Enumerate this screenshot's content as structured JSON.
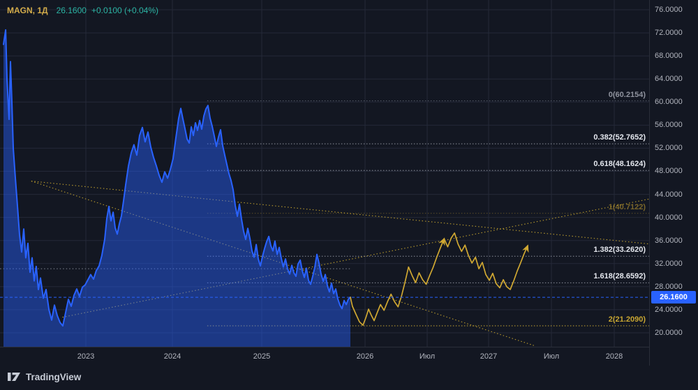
{
  "legend": {
    "symbol": "MAGN, 1Д",
    "price": "26.1600",
    "change": "+0.0100 (+0.04%)"
  },
  "colors": {
    "background": "#131722",
    "grid": "#242938",
    "axis_text": "#b2b5be",
    "axis_border": "#2a2e39",
    "series_blue": "#2962ff",
    "series_blue_fill": "rgba(41,98,255,0.45)",
    "drawing_yellow": "#d0a832",
    "trendline_yellow": "#b89a2e",
    "up_teal": "#2bb3a3",
    "symbol_gold": "#d2ab4a",
    "current_price_bg": "#2962ff"
  },
  "price_axis": {
    "ticks": [
      {
        "label": "76.0000",
        "value": 76
      },
      {
        "label": "72.0000",
        "value": 72
      },
      {
        "label": "68.0000",
        "value": 68
      },
      {
        "label": "64.0000",
        "value": 64
      },
      {
        "label": "60.0000",
        "value": 60
      },
      {
        "label": "56.0000",
        "value": 56
      },
      {
        "label": "52.0000",
        "value": 52
      },
      {
        "label": "48.0000",
        "value": 48
      },
      {
        "label": "44.0000",
        "value": 44
      },
      {
        "label": "40.0000",
        "value": 40
      },
      {
        "label": "36.0000",
        "value": 36
      },
      {
        "label": "32.0000",
        "value": 32
      },
      {
        "label": "28.0000",
        "value": 28
      },
      {
        "label": "24.0000",
        "value": 24
      },
      {
        "label": "20.0000",
        "value": 20
      }
    ],
    "current": {
      "text": "26.1600",
      "value": 26.16,
      "bg": "#2962ff"
    }
  },
  "time_axis": {
    "ticks": [
      {
        "label": "2023",
        "t": 2023
      },
      {
        "label": "2024",
        "t": 2024
      },
      {
        "label": "2025",
        "t": 2025
      },
      {
        "label": "2026",
        "t": 2026
      },
      {
        "label": "Июл",
        "t": 2026.5
      },
      {
        "label": "2027",
        "t": 2027
      },
      {
        "label": "Июл",
        "t": 2027.5
      },
      {
        "label": "2028",
        "t": 2028
      }
    ]
  },
  "footer": {
    "brand": "TradingView"
  },
  "chart_data": {
    "type": "line",
    "x_unit": "decimal-year",
    "xlim": [
      2022.01,
      2028.28
    ],
    "ylim": [
      17.6,
      77.7
    ],
    "grid": true,
    "series": [
      {
        "name": "MAGN close",
        "color": "#2962ff",
        "width": 2,
        "area": true,
        "area_color": "rgba(41,98,255,0.45)",
        "points": [
          [
            2022.048,
            70
          ],
          [
            2022.073,
            72.5
          ],
          [
            2022.089,
            64
          ],
          [
            2022.113,
            57
          ],
          [
            2022.129,
            67
          ],
          [
            2022.145,
            60
          ],
          [
            2022.161,
            52
          ],
          [
            2022.185,
            47
          ],
          [
            2022.21,
            42
          ],
          [
            2022.234,
            37
          ],
          [
            2022.258,
            34
          ],
          [
            2022.282,
            38
          ],
          [
            2022.306,
            33
          ],
          [
            2022.331,
            35.5
          ],
          [
            2022.355,
            30.5
          ],
          [
            2022.379,
            33
          ],
          [
            2022.403,
            29
          ],
          [
            2022.427,
            31.5
          ],
          [
            2022.452,
            27.5
          ],
          [
            2022.476,
            29.5
          ],
          [
            2022.508,
            26
          ],
          [
            2022.54,
            27.5
          ],
          [
            2022.573,
            24
          ],
          [
            2022.605,
            22.2
          ],
          [
            2022.637,
            24.8
          ],
          [
            2022.669,
            23
          ],
          [
            2022.702,
            21.8
          ],
          [
            2022.734,
            21.2
          ],
          [
            2022.766,
            23.5
          ],
          [
            2022.798,
            25.8
          ],
          [
            2022.831,
            24.6
          ],
          [
            2022.863,
            26.5
          ],
          [
            2022.895,
            27.6
          ],
          [
            2022.927,
            26.3
          ],
          [
            2022.96,
            27.9
          ],
          [
            2022.992,
            28.3
          ],
          [
            2023.024,
            29.2
          ],
          [
            2023.056,
            30.1
          ],
          [
            2023.089,
            29.3
          ],
          [
            2023.121,
            30.8
          ],
          [
            2023.153,
            31.6
          ],
          [
            2023.185,
            33.4
          ],
          [
            2023.218,
            36.2
          ],
          [
            2023.242,
            39.8
          ],
          [
            2023.266,
            41.9
          ],
          [
            2023.29,
            39.4
          ],
          [
            2023.315,
            40.9
          ],
          [
            2023.339,
            38.2
          ],
          [
            2023.363,
            37.1
          ],
          [
            2023.387,
            38.9
          ],
          [
            2023.411,
            40.3
          ],
          [
            2023.435,
            42.8
          ],
          [
            2023.46,
            45.6
          ],
          [
            2023.492,
            48.9
          ],
          [
            2023.524,
            51.2
          ],
          [
            2023.556,
            52.6
          ],
          [
            2023.589,
            50.8
          ],
          [
            2023.621,
            54.2
          ],
          [
            2023.653,
            55.6
          ],
          [
            2023.685,
            53.1
          ],
          [
            2023.718,
            54.8
          ],
          [
            2023.75,
            52.2
          ],
          [
            2023.782,
            50.4
          ],
          [
            2023.815,
            48.9
          ],
          [
            2023.847,
            47.3
          ],
          [
            2023.879,
            46.1
          ],
          [
            2023.911,
            47.9
          ],
          [
            2023.944,
            46.8
          ],
          [
            2023.976,
            48.3
          ],
          [
            2024.008,
            50.2
          ],
          [
            2024.039,
            53.8
          ],
          [
            2024.07,
            57.2
          ],
          [
            2024.094,
            58.9
          ],
          [
            2024.117,
            57.1
          ],
          [
            2024.141,
            55.4
          ],
          [
            2024.164,
            53.6
          ],
          [
            2024.188,
            52.9
          ],
          [
            2024.211,
            55.7
          ],
          [
            2024.234,
            54.2
          ],
          [
            2024.258,
            56.4
          ],
          [
            2024.281,
            55.1
          ],
          [
            2024.305,
            56.8
          ],
          [
            2024.328,
            55.3
          ],
          [
            2024.352,
            57.6
          ],
          [
            2024.375,
            58.8
          ],
          [
            2024.398,
            59.4
          ],
          [
            2024.422,
            57.2
          ],
          [
            2024.445,
            55.8
          ],
          [
            2024.469,
            54.1
          ],
          [
            2024.492,
            52.3
          ],
          [
            2024.516,
            53.9
          ],
          [
            2024.539,
            55.2
          ],
          [
            2024.563,
            52.4
          ],
          [
            2024.586,
            50.8
          ],
          [
            2024.609,
            49.2
          ],
          [
            2024.633,
            47.6
          ],
          [
            2024.656,
            46.4
          ],
          [
            2024.68,
            44.8
          ],
          [
            2024.703,
            42.1
          ],
          [
            2024.727,
            40.2
          ],
          [
            2024.75,
            42.3
          ],
          [
            2024.773,
            39.8
          ],
          [
            2024.797,
            37.6
          ],
          [
            2024.82,
            36.2
          ],
          [
            2024.844,
            38.1
          ],
          [
            2024.867,
            36.4
          ],
          [
            2024.891,
            34.2
          ],
          [
            2024.914,
            33.1
          ],
          [
            2024.938,
            35.3
          ],
          [
            2024.961,
            32.8
          ],
          [
            2024.984,
            31.6
          ],
          [
            2025.007,
            33.2
          ],
          [
            2025.027,
            34.6
          ],
          [
            2025.047,
            35.8
          ],
          [
            2025.068,
            36.7
          ],
          [
            2025.088,
            35.1
          ],
          [
            2025.108,
            34.2
          ],
          [
            2025.128,
            35.9
          ],
          [
            2025.149,
            33.6
          ],
          [
            2025.169,
            34.8
          ],
          [
            2025.189,
            32.9
          ],
          [
            2025.209,
            31.4
          ],
          [
            2025.23,
            32.8
          ],
          [
            2025.25,
            31.1
          ],
          [
            2025.27,
            30.2
          ],
          [
            2025.291,
            31.7
          ],
          [
            2025.311,
            30.4
          ],
          [
            2025.331,
            29.8
          ],
          [
            2025.351,
            31.9
          ],
          [
            2025.372,
            32.6
          ],
          [
            2025.392,
            30.8
          ],
          [
            2025.412,
            29.6
          ],
          [
            2025.432,
            31.2
          ],
          [
            2025.453,
            29.1
          ],
          [
            2025.473,
            28.4
          ],
          [
            2025.493,
            29.8
          ],
          [
            2025.514,
            31.4
          ],
          [
            2025.534,
            33.6
          ],
          [
            2025.554,
            32.1
          ],
          [
            2025.574,
            30.2
          ],
          [
            2025.595,
            28.9
          ],
          [
            2025.615,
            30.1
          ],
          [
            2025.635,
            28.2
          ],
          [
            2025.655,
            27.1
          ],
          [
            2025.676,
            28.6
          ],
          [
            2025.696,
            26.8
          ],
          [
            2025.716,
            27.6
          ],
          [
            2025.736,
            25.9
          ],
          [
            2025.757,
            24.8
          ],
          [
            2025.777,
            24.2
          ],
          [
            2025.797,
            25.6
          ],
          [
            2025.818,
            24.9
          ],
          [
            2025.838,
            25.8
          ],
          [
            2025.858,
            26.16
          ]
        ]
      },
      {
        "name": "projection (drawing)",
        "color": "#d0a832",
        "width": 1.7,
        "area": false,
        "points": [
          [
            2025.858,
            26.16
          ],
          [
            2025.878,
            24.6
          ],
          [
            2025.912,
            23.2
          ],
          [
            2025.946,
            21.9
          ],
          [
            2025.98,
            21.3
          ],
          [
            2026.006,
            22.6
          ],
          [
            2026.028,
            24.1
          ],
          [
            2026.051,
            23
          ],
          [
            2026.073,
            22.1
          ],
          [
            2026.096,
            23.4
          ],
          [
            2026.124,
            24.9
          ],
          [
            2026.153,
            23.9
          ],
          [
            2026.181,
            25.4
          ],
          [
            2026.209,
            26.7
          ],
          [
            2026.237,
            25.4
          ],
          [
            2026.266,
            24.5
          ],
          [
            2026.294,
            26.4
          ],
          [
            2026.322,
            28.8
          ],
          [
            2026.35,
            31.4
          ],
          [
            2026.379,
            29.9
          ],
          [
            2026.407,
            28.7
          ],
          [
            2026.435,
            30.4
          ],
          [
            2026.463,
            29.2
          ],
          [
            2026.492,
            28.4
          ],
          [
            2026.52,
            29.9
          ],
          [
            2026.548,
            31.3
          ],
          [
            2026.576,
            33
          ],
          [
            2026.605,
            34.6
          ],
          [
            2026.638,
            36.3
          ],
          [
            2026.667,
            34.9
          ],
          [
            2026.695,
            36.4
          ],
          [
            2026.723,
            37.3
          ],
          [
            2026.751,
            35.4
          ],
          [
            2026.78,
            34.1
          ],
          [
            2026.808,
            35.2
          ],
          [
            2026.836,
            33.4
          ],
          [
            2026.864,
            32.1
          ],
          [
            2026.893,
            33.1
          ],
          [
            2026.921,
            31.1
          ],
          [
            2026.949,
            32.2
          ],
          [
            2026.977,
            30.1
          ],
          [
            2027.006,
            29.1
          ],
          [
            2027.033,
            30.3
          ],
          [
            2027.061,
            28.5
          ],
          [
            2027.089,
            27.8
          ],
          [
            2027.117,
            29.2
          ],
          [
            2027.144,
            28
          ],
          [
            2027.172,
            27.5
          ],
          [
            2027.2,
            29
          ],
          [
            2027.228,
            30.7
          ],
          [
            2027.256,
            32.2
          ],
          [
            2027.283,
            33.7
          ],
          [
            2027.311,
            35.1
          ]
        ]
      }
    ],
    "fib": {
      "start_t": 2024.39,
      "levels": [
        {
          "label": "0(60.2154)",
          "value": 60.2154,
          "line_color": "#565b68",
          "label_color": "#8f939e"
        },
        {
          "label": "0.382(52.7652)",
          "value": 52.7652,
          "line_color": "#8f939e",
          "label_color": "#e4e7ee"
        },
        {
          "label": "0.618(48.1624)",
          "value": 48.1624,
          "line_color": "#8f939e",
          "label_color": "#e4e7ee"
        },
        {
          "label": "1(40.7122)",
          "value": 40.7122,
          "line_color": "rgba(208,168,50,0.40)",
          "label_color": "rgba(208,168,50,0.55)"
        },
        {
          "label": "1.382(33.2620)",
          "value": 33.262,
          "line_color": "#8f939e",
          "label_color": "#e4e7ee"
        },
        {
          "label": "1.618(28.6592)",
          "value": 28.6592,
          "line_color": "#8f939e",
          "label_color": "#e4e7ee"
        },
        {
          "label": "2(21.2090)",
          "value": 21.209,
          "line_color": "#c9a732",
          "label_color": "#c9a732"
        }
      ]
    },
    "annotations": {
      "trendlines": [
        {
          "from": [
            2022.37,
            46.3
          ],
          "to": [
            2027.36,
            17.8
          ],
          "color": "#b89a2e"
        },
        {
          "from": [
            2022.37,
            46.3
          ],
          "to": [
            2028.28,
            35.4
          ],
          "color": "#b89a2e"
        },
        {
          "from": [
            2022.73,
            22.7
          ],
          "to": [
            2028.28,
            43.2
          ],
          "color": "#b89a2e"
        },
        {
          "from": [
            2022.01,
            31.1
          ],
          "to": [
            2025.86,
            31.1
          ],
          "color": "#767b87"
        }
      ],
      "arrows": [
        {
          "t": 2026.638,
          "p": 36.3,
          "angle": 23
        },
        {
          "t": 2027.311,
          "p": 35.1,
          "angle": 21
        }
      ]
    }
  }
}
